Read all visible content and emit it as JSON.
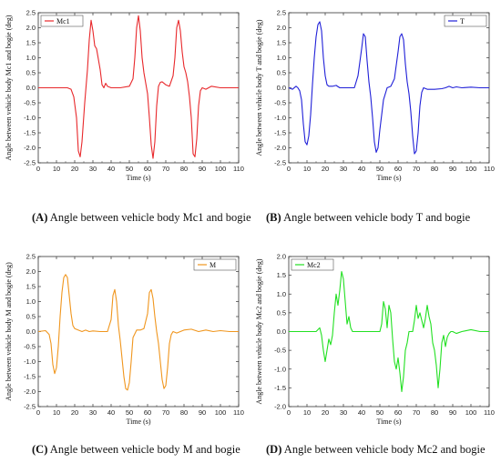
{
  "chart_data": [
    {
      "id": "A",
      "type": "line",
      "xlabel": "Time (s)",
      "ylabel": "Angle between vehicle body Mc1 and bogie (deg)",
      "xlim": [
        0,
        110
      ],
      "ylim": [
        -2.5,
        2.5
      ],
      "xticks": [
        "0",
        "10",
        "20",
        "30",
        "40",
        "50",
        "60",
        "70",
        "80",
        "90",
        "100",
        "110"
      ],
      "yticks": [
        "-2.5",
        "-2.0",
        "-1.5",
        "-1.0",
        "-0.5",
        "0.0",
        "0.5",
        "1.0",
        "1.5",
        "2.0",
        "2.5"
      ],
      "legend": "top-left",
      "caption_letter": "(A)",
      "caption_text": " Angle between vehicle body Mc1 and bogie",
      "series": [
        {
          "name": "Mc1",
          "color": "#e8282b",
          "x": [
            0,
            16,
            18,
            19.5,
            21,
            22,
            23,
            24,
            25.5,
            27,
            28,
            29,
            30,
            31,
            32,
            34,
            35,
            36,
            37,
            38,
            40,
            45,
            50,
            52,
            53,
            54,
            55,
            56,
            57,
            58,
            59,
            60,
            61,
            62,
            63,
            64,
            65,
            66,
            67,
            68,
            70,
            72,
            74,
            75,
            76,
            77,
            78,
            79,
            80,
            81,
            82,
            83,
            84,
            85,
            86,
            87,
            88,
            89,
            90,
            92,
            95,
            100,
            105,
            110
          ],
          "y": [
            0,
            0,
            -0.05,
            -0.3,
            -1.0,
            -2.1,
            -2.3,
            -1.8,
            -0.5,
            0.6,
            1.6,
            2.25,
            1.9,
            1.4,
            1.3,
            0.6,
            0.1,
            0.0,
            0.15,
            0.05,
            0.0,
            0.0,
            0.05,
            0.3,
            1.0,
            2.0,
            2.4,
            1.9,
            1.0,
            0.5,
            0.15,
            -0.2,
            -1.0,
            -1.9,
            -2.35,
            -1.8,
            -0.6,
            0.05,
            0.18,
            0.2,
            0.1,
            0.05,
            0.4,
            1.0,
            2.0,
            2.25,
            1.9,
            1.2,
            0.7,
            0.5,
            0.2,
            -0.3,
            -1.0,
            -2.2,
            -2.3,
            -1.7,
            -0.6,
            -0.1,
            0.0,
            -0.05,
            0.05,
            0.0,
            0.0,
            0.0
          ]
        }
      ]
    },
    {
      "id": "B",
      "type": "line",
      "xlabel": "Time (s)",
      "ylabel": "Angle between vehicle body T and bogie (deg)",
      "xlim": [
        0,
        110
      ],
      "ylim": [
        -2.5,
        2.5
      ],
      "xticks": [
        "0",
        "10",
        "20",
        "30",
        "40",
        "50",
        "60",
        "70",
        "80",
        "90",
        "100",
        "110"
      ],
      "yticks": [
        "-2.5",
        "-2.0",
        "-1.5",
        "-1.0",
        "-0.5",
        "0.0",
        "0.5",
        "1.0",
        "1.5",
        "2.0",
        "2.5"
      ],
      "legend": "top-right",
      "caption_letter": "(B)",
      "caption_text": " Angle between vehicle body T and bogie",
      "series": [
        {
          "name": "T",
          "color": "#2020d8",
          "x": [
            0,
            2,
            4,
            5,
            6,
            7,
            8,
            9,
            10,
            11,
            12,
            13,
            14,
            15,
            16,
            17,
            18,
            19,
            20,
            21,
            22,
            24,
            26,
            28,
            30,
            33,
            36,
            38,
            40,
            41,
            42,
            43,
            44,
            45,
            46,
            47,
            48,
            49,
            50,
            52,
            54,
            56,
            58,
            60,
            61,
            62,
            63,
            64,
            65,
            66,
            67,
            68,
            69,
            70,
            71,
            72,
            73,
            74,
            76,
            80,
            84,
            86,
            88,
            90,
            92,
            95,
            100,
            105,
            110
          ],
          "y": [
            0,
            -0.05,
            0.05,
            0,
            -0.1,
            -0.4,
            -1.2,
            -1.8,
            -1.9,
            -1.6,
            -0.9,
            0.1,
            1.0,
            1.7,
            2.1,
            2.2,
            1.9,
            1.0,
            0.4,
            0.1,
            0.05,
            0.05,
            0.08,
            0.0,
            0.0,
            0.0,
            0.0,
            0.4,
            1.3,
            1.8,
            1.7,
            0.9,
            0.2,
            -0.3,
            -1.0,
            -1.8,
            -2.15,
            -2.0,
            -1.4,
            -0.4,
            0.0,
            0.05,
            0.3,
            1.2,
            1.7,
            1.8,
            1.6,
            0.8,
            0.2,
            -0.2,
            -0.8,
            -1.6,
            -2.2,
            -2.1,
            -1.5,
            -0.6,
            -0.15,
            0.0,
            -0.05,
            -0.05,
            -0.03,
            0.0,
            0.05,
            0.0,
            0.03,
            0.0,
            0.02,
            0.0,
            0.0
          ]
        }
      ]
    },
    {
      "id": "C",
      "type": "line",
      "xlabel": "Time (s)",
      "ylabel": "Angle between vehicle body M and bogie (deg)",
      "xlim": [
        0,
        110
      ],
      "ylim": [
        -2.5,
        2.5
      ],
      "xticks": [
        "0",
        "10",
        "20",
        "30",
        "40",
        "50",
        "60",
        "70",
        "80",
        "90",
        "100",
        "110"
      ],
      "yticks": [
        "-2.5",
        "-2.0",
        "-1.5",
        "-1.0",
        "-0.5",
        "0.0",
        "0.5",
        "1.0",
        "1.5",
        "2.0",
        "2.5"
      ],
      "legend": "top-right",
      "caption_letter": "(C)",
      "caption_text": " Angle between vehicle body M and bogie",
      "series": [
        {
          "name": "M",
          "color": "#f0961e",
          "x": [
            0,
            4,
            6,
            7,
            8,
            9,
            10,
            11,
            12,
            13,
            14,
            15,
            16,
            17,
            18,
            19,
            20,
            22,
            24,
            26,
            28,
            30,
            34,
            38,
            40,
            41,
            42,
            43,
            44,
            45,
            46,
            47,
            48,
            49,
            50,
            51,
            52,
            54,
            56,
            58,
            60,
            61,
            62,
            63,
            64,
            65,
            66,
            67,
            68,
            69,
            70,
            71,
            72,
            73,
            74,
            76,
            78,
            80,
            84,
            88,
            92,
            96,
            100,
            105,
            110
          ],
          "y": [
            0,
            0.03,
            -0.1,
            -0.4,
            -1.1,
            -1.4,
            -1.2,
            -0.5,
            0.5,
            1.3,
            1.8,
            1.9,
            1.8,
            1.2,
            0.6,
            0.2,
            0.1,
            0.05,
            0.0,
            0.05,
            0.0,
            0.02,
            0.0,
            0.0,
            0.4,
            1.2,
            1.4,
            1.0,
            0.2,
            -0.3,
            -0.9,
            -1.5,
            -1.9,
            -1.95,
            -1.7,
            -1.0,
            -0.2,
            0.05,
            0.05,
            0.1,
            0.6,
            1.3,
            1.4,
            1.1,
            0.5,
            0.0,
            -0.4,
            -1.0,
            -1.6,
            -1.9,
            -1.8,
            -1.2,
            -0.4,
            -0.1,
            0.0,
            -0.05,
            0.0,
            0.05,
            0.08,
            0.0,
            0.05,
            0.0,
            0.03,
            0.0,
            0.0
          ]
        }
      ]
    },
    {
      "id": "D",
      "type": "line",
      "xlabel": "Time (s)",
      "ylabel": "Angle between vehicle body Mc2 and bogie (deg)",
      "xlim": [
        0,
        110
      ],
      "ylim": [
        -2.0,
        2.0
      ],
      "xticks": [
        "0",
        "10",
        "20",
        "30",
        "40",
        "50",
        "60",
        "70",
        "80",
        "90",
        "100",
        "110"
      ],
      "yticks": [
        "-2.0",
        "-1.5",
        "-1.0",
        "-0.5",
        "0.0",
        "0.5",
        "1.0",
        "1.5",
        "2.0"
      ],
      "legend": "top-left",
      "caption_letter": "(D)",
      "caption_text": " Angle between vehicle body Mc2 and bogie",
      "series": [
        {
          "name": "Mc2",
          "color": "#22e022",
          "x": [
            0,
            15,
            17,
            18,
            19,
            20,
            21,
            22,
            23,
            24,
            25,
            26,
            27,
            28,
            29,
            30,
            31,
            32,
            33,
            34,
            35,
            36,
            38,
            40,
            45,
            50,
            51,
            52,
            53,
            54,
            55,
            56,
            57,
            58,
            59,
            60,
            61,
            62,
            63,
            64,
            65,
            66,
            67,
            68,
            69,
            70,
            71,
            72,
            73,
            74,
            75,
            76,
            77,
            78,
            79,
            80,
            81,
            82,
            83,
            84,
            85,
            86,
            87,
            88,
            89,
            90,
            92,
            95,
            100,
            105,
            110
          ],
          "y": [
            0,
            0,
            0.1,
            -0.1,
            -0.5,
            -0.8,
            -0.5,
            -0.2,
            -0.35,
            -0.1,
            0.5,
            1.0,
            0.7,
            1.1,
            1.6,
            1.4,
            0.8,
            0.2,
            0.4,
            0.1,
            0.0,
            0.0,
            0.0,
            0.0,
            0.0,
            0.0,
            0.2,
            0.8,
            0.6,
            0.1,
            0.7,
            0.5,
            -0.2,
            -0.8,
            -1.0,
            -0.7,
            -1.1,
            -1.6,
            -1.2,
            -0.5,
            -0.3,
            0.0,
            0.0,
            0.0,
            0.3,
            0.7,
            0.35,
            0.5,
            0.3,
            0.1,
            0.35,
            0.7,
            0.4,
            0.2,
            -0.3,
            -0.5,
            -0.9,
            -1.5,
            -1.0,
            -0.3,
            -0.1,
            -0.4,
            -0.15,
            -0.05,
            0.0,
            0.0,
            -0.05,
            0.0,
            0.05,
            0.0,
            0.0
          ]
        }
      ]
    }
  ]
}
